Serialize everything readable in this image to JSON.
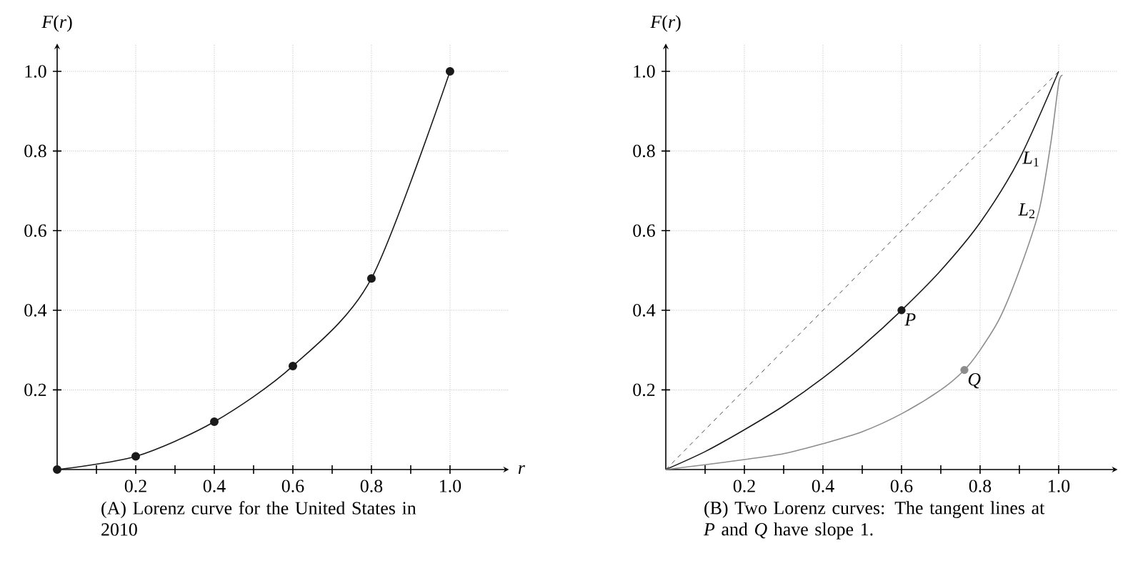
{
  "chart_data": [
    {
      "type": "line",
      "ylabel": "*F*(*r*)",
      "xlabel": "*r*",
      "xlim": [
        0,
        1.15
      ],
      "ylim": [
        0,
        1.07
      ],
      "xticks": [
        {
          "value": 0.1,
          "label": null
        },
        0.2,
        {
          "value": 0.3,
          "label": null
        },
        0.4,
        {
          "value": 0.5,
          "label": null
        },
        0.6,
        {
          "value": 0.7,
          "label": null
        },
        0.8,
        {
          "value": 0.9,
          "label": null
        },
        {
          "value": 1,
          "label": "1.0"
        }
      ],
      "yticks": [
        0.2,
        0.4,
        0.6,
        0.8,
        {
          "value": 1,
          "label": "1.0"
        }
      ],
      "grid": true,
      "marker": "circle",
      "x": [
        0,
        0.2,
        0.4,
        0.6,
        0.8,
        1.0
      ],
      "series": [
        {
          "color": "#1a1a1a",
          "values": [
            0,
            0.033,
            0.12,
            0.26,
            0.48,
            1.0
          ]
        }
      ],
      "annotations": [
        "(A) Lorenz curve for the United States in 2010"
      ]
    },
    {
      "type": "line",
      "ylabel": "*F*(*r*)",
      "xlim": [
        0,
        1.15
      ],
      "ylim": [
        0,
        1.07
      ],
      "xticks": [
        {
          "value": 0.1,
          "label": null
        },
        0.2,
        {
          "value": 0.3,
          "label": null
        },
        0.4,
        {
          "value": 0.5,
          "label": null
        },
        0.6,
        {
          "value": 0.7,
          "label": null
        },
        0.8,
        {
          "value": 0.9,
          "label": null
        },
        {
          "value": 1,
          "label": "1.0"
        }
      ],
      "yticks": [
        0.2,
        0.4,
        0.6,
        0.8,
        {
          "value": 1,
          "label": "1.0"
        }
      ],
      "grid": true,
      "series": [
        {
          "color": "#1a1a1a",
          "line_style": "dashed",
          "x": [
            0,
            1.0
          ],
          "values": [
            0,
            1.0
          ]
        },
        {
          "name": "*L*$_{1}$",
          "color": "#1a1a1a",
          "x": [
            0,
            0.1,
            0.2,
            0.3,
            0.4,
            0.5,
            0.6,
            0.7,
            0.8,
            0.9,
            1.0
          ],
          "values": [
            0,
            0.045,
            0.1,
            0.16,
            0.23,
            0.31,
            0.4,
            0.5,
            0.62,
            0.78,
            1.0
          ]
        },
        {
          "name": "*L*$_{2}$",
          "color": "#8c8c8c",
          "x": [
            0,
            0.1,
            0.2,
            0.3,
            0.4,
            0.5,
            0.6,
            0.7,
            0.76,
            0.8,
            0.85,
            0.9,
            0.95,
            0.98,
            1.0,
            1.01
          ],
          "values": [
            0,
            0.012,
            0.025,
            0.04,
            0.065,
            0.095,
            0.14,
            0.2,
            0.25,
            0.3,
            0.38,
            0.5,
            0.65,
            0.82,
            0.97,
            0.99
          ]
        },
        {
          "type": "scatter",
          "marker": "circle",
          "color": "#1a1a1a",
          "x": [
            0.6
          ],
          "values": [
            0.4
          ]
        },
        {
          "type": "scatter",
          "marker": "circle",
          "color": "#8c8c8c",
          "x": [
            0.76
          ],
          "values": [
            0.25
          ]
        }
      ],
      "annotations": [
        {
          "text": "*P*",
          "x": 0.6,
          "y": 0.4
        },
        {
          "text": "*Q*",
          "x": 0.76,
          "y": 0.25
        },
        "(B) Two Lorenz curves: The tangent lines at *P* and *Q* have slope 1."
      ]
    }
  ]
}
